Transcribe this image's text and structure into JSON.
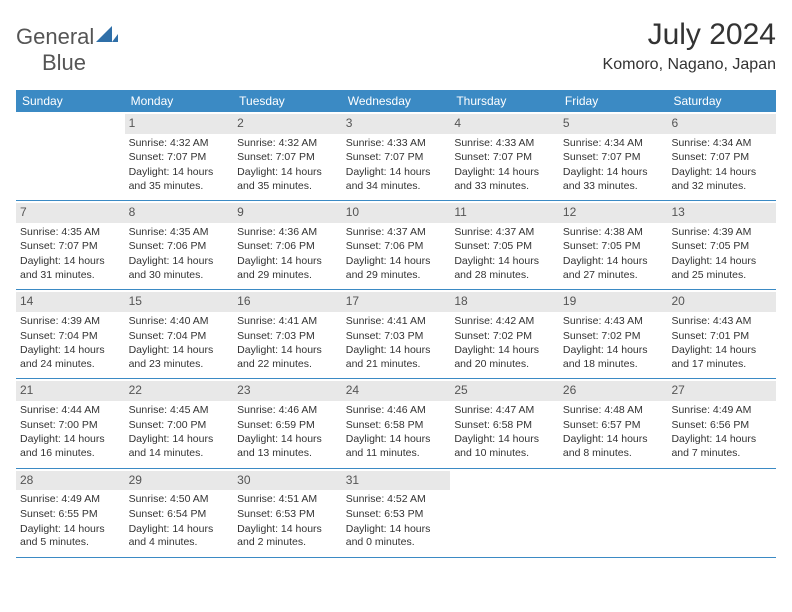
{
  "brand": {
    "name_a": "General",
    "name_b": "Blue"
  },
  "title": "July 2024",
  "location": "Komoro, Nagano, Japan",
  "colors": {
    "header_bg": "#3b8ac4",
    "header_fg": "#ffffff",
    "daynum_bg": "#e8e8e8",
    "daynum_fg": "#555555",
    "rule": "#3b8ac4",
    "text": "#333333",
    "logo_accent": "#2f6fa8"
  },
  "weekdays": [
    "Sunday",
    "Monday",
    "Tuesday",
    "Wednesday",
    "Thursday",
    "Friday",
    "Saturday"
  ],
  "weeks": [
    [
      null,
      {
        "n": "1",
        "sr": "4:32 AM",
        "ss": "7:07 PM",
        "dl": "14 hours and 35 minutes."
      },
      {
        "n": "2",
        "sr": "4:32 AM",
        "ss": "7:07 PM",
        "dl": "14 hours and 35 minutes."
      },
      {
        "n": "3",
        "sr": "4:33 AM",
        "ss": "7:07 PM",
        "dl": "14 hours and 34 minutes."
      },
      {
        "n": "4",
        "sr": "4:33 AM",
        "ss": "7:07 PM",
        "dl": "14 hours and 33 minutes."
      },
      {
        "n": "5",
        "sr": "4:34 AM",
        "ss": "7:07 PM",
        "dl": "14 hours and 33 minutes."
      },
      {
        "n": "6",
        "sr": "4:34 AM",
        "ss": "7:07 PM",
        "dl": "14 hours and 32 minutes."
      }
    ],
    [
      {
        "n": "7",
        "sr": "4:35 AM",
        "ss": "7:07 PM",
        "dl": "14 hours and 31 minutes."
      },
      {
        "n": "8",
        "sr": "4:35 AM",
        "ss": "7:06 PM",
        "dl": "14 hours and 30 minutes."
      },
      {
        "n": "9",
        "sr": "4:36 AM",
        "ss": "7:06 PM",
        "dl": "14 hours and 29 minutes."
      },
      {
        "n": "10",
        "sr": "4:37 AM",
        "ss": "7:06 PM",
        "dl": "14 hours and 29 minutes."
      },
      {
        "n": "11",
        "sr": "4:37 AM",
        "ss": "7:05 PM",
        "dl": "14 hours and 28 minutes."
      },
      {
        "n": "12",
        "sr": "4:38 AM",
        "ss": "7:05 PM",
        "dl": "14 hours and 27 minutes."
      },
      {
        "n": "13",
        "sr": "4:39 AM",
        "ss": "7:05 PM",
        "dl": "14 hours and 25 minutes."
      }
    ],
    [
      {
        "n": "14",
        "sr": "4:39 AM",
        "ss": "7:04 PM",
        "dl": "14 hours and 24 minutes."
      },
      {
        "n": "15",
        "sr": "4:40 AM",
        "ss": "7:04 PM",
        "dl": "14 hours and 23 minutes."
      },
      {
        "n": "16",
        "sr": "4:41 AM",
        "ss": "7:03 PM",
        "dl": "14 hours and 22 minutes."
      },
      {
        "n": "17",
        "sr": "4:41 AM",
        "ss": "7:03 PM",
        "dl": "14 hours and 21 minutes."
      },
      {
        "n": "18",
        "sr": "4:42 AM",
        "ss": "7:02 PM",
        "dl": "14 hours and 20 minutes."
      },
      {
        "n": "19",
        "sr": "4:43 AM",
        "ss": "7:02 PM",
        "dl": "14 hours and 18 minutes."
      },
      {
        "n": "20",
        "sr": "4:43 AM",
        "ss": "7:01 PM",
        "dl": "14 hours and 17 minutes."
      }
    ],
    [
      {
        "n": "21",
        "sr": "4:44 AM",
        "ss": "7:00 PM",
        "dl": "14 hours and 16 minutes."
      },
      {
        "n": "22",
        "sr": "4:45 AM",
        "ss": "7:00 PM",
        "dl": "14 hours and 14 minutes."
      },
      {
        "n": "23",
        "sr": "4:46 AM",
        "ss": "6:59 PM",
        "dl": "14 hours and 13 minutes."
      },
      {
        "n": "24",
        "sr": "4:46 AM",
        "ss": "6:58 PM",
        "dl": "14 hours and 11 minutes."
      },
      {
        "n": "25",
        "sr": "4:47 AM",
        "ss": "6:58 PM",
        "dl": "14 hours and 10 minutes."
      },
      {
        "n": "26",
        "sr": "4:48 AM",
        "ss": "6:57 PM",
        "dl": "14 hours and 8 minutes."
      },
      {
        "n": "27",
        "sr": "4:49 AM",
        "ss": "6:56 PM",
        "dl": "14 hours and 7 minutes."
      }
    ],
    [
      {
        "n": "28",
        "sr": "4:49 AM",
        "ss": "6:55 PM",
        "dl": "14 hours and 5 minutes."
      },
      {
        "n": "29",
        "sr": "4:50 AM",
        "ss": "6:54 PM",
        "dl": "14 hours and 4 minutes."
      },
      {
        "n": "30",
        "sr": "4:51 AM",
        "ss": "6:53 PM",
        "dl": "14 hours and 2 minutes."
      },
      {
        "n": "31",
        "sr": "4:52 AM",
        "ss": "6:53 PM",
        "dl": "14 hours and 0 minutes."
      },
      null,
      null,
      null
    ]
  ],
  "labels": {
    "sunrise": "Sunrise: ",
    "sunset": "Sunset: ",
    "daylight": "Daylight: "
  }
}
